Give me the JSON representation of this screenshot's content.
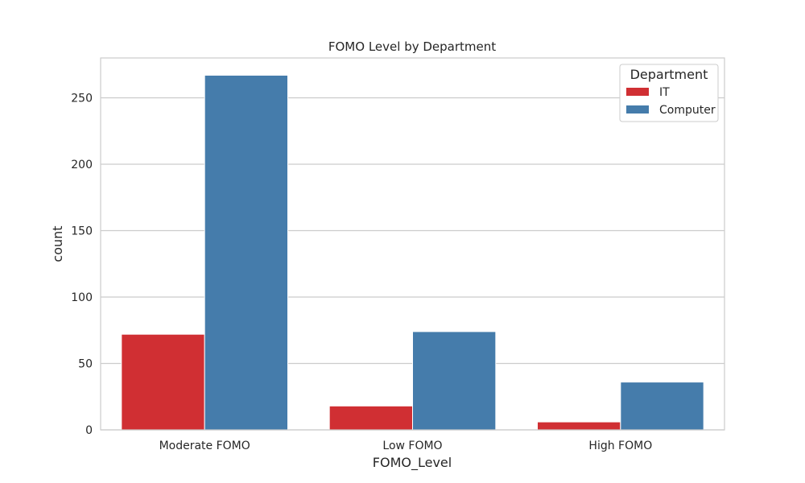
{
  "chart_data": {
    "type": "bar",
    "title": "FOMO Level by Department",
    "xlabel": "FOMO_Level",
    "ylabel": "count",
    "categories": [
      "Moderate FOMO",
      "Low FOMO",
      "High FOMO"
    ],
    "series": [
      {
        "name": "IT",
        "values": [
          72,
          18,
          6
        ],
        "color": "#d02f33"
      },
      {
        "name": "Computer",
        "values": [
          267,
          74,
          36
        ],
        "color": "#457cab"
      }
    ],
    "ylim": [
      0,
      280
    ],
    "yticks": [
      0,
      50,
      100,
      150,
      200,
      250
    ],
    "grid": true,
    "legend": {
      "title": "Department",
      "position": "top-right"
    }
  }
}
